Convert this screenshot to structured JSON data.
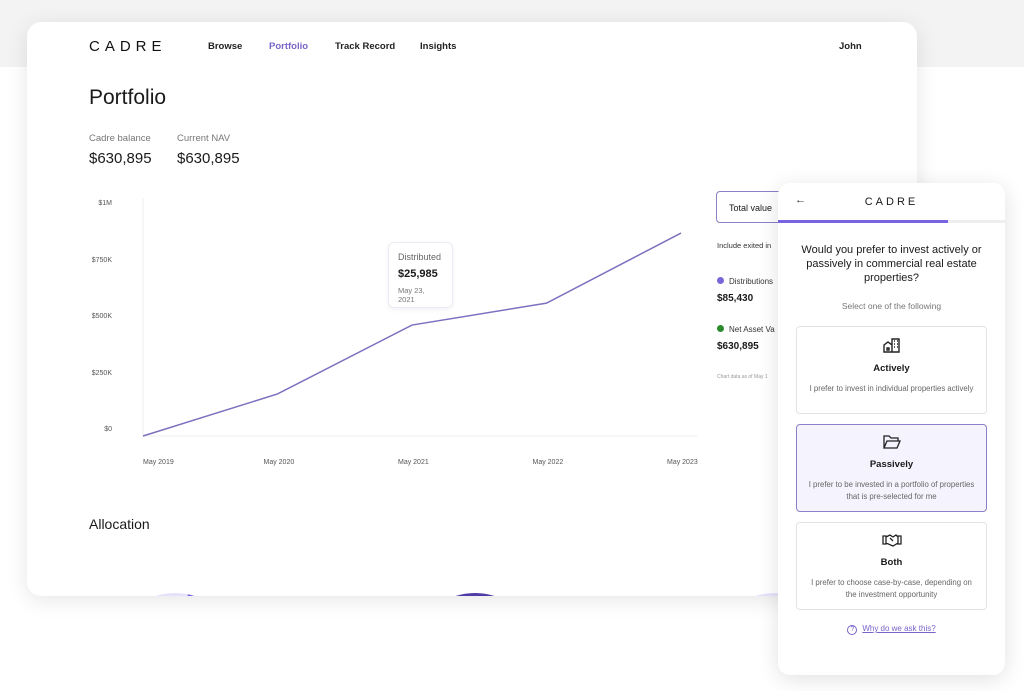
{
  "header": {
    "logo": "CADRE",
    "nav": [
      {
        "label": "Browse"
      },
      {
        "label": "Portfolio",
        "active": true
      },
      {
        "label": "Track Record"
      },
      {
        "label": "Insights"
      }
    ],
    "user": "John"
  },
  "page": {
    "title": "Portfolio",
    "stats": [
      {
        "label": "Cadre balance",
        "value": "$630,895"
      },
      {
        "label": "Current NAV",
        "value": "$630,895"
      }
    ],
    "allocation_title": "Allocation"
  },
  "tooltip": {
    "label": "Distributed",
    "value": "$25,985",
    "date": "May 23, 2021"
  },
  "side_panel": {
    "select": "Total value",
    "include": "Include exited in",
    "legend": [
      {
        "label": "Distributions",
        "value": "$85,430",
        "color": "#7b64d9"
      },
      {
        "label": "Net Asset Va",
        "value": "$630,895",
        "color": "#2b8a2b"
      }
    ],
    "note": "Chart data as of May 1"
  },
  "chart_data": {
    "type": "line",
    "categories": [
      "May 2019",
      "May 2020",
      "May 2021",
      "May 2022",
      "May 2023"
    ],
    "values": [
      0,
      186000,
      491000,
      588000,
      898000
    ],
    "yticks": [
      "$0",
      "$250K",
      "$500K",
      "$750K",
      "$1M"
    ],
    "ylim": [
      0,
      1000000
    ],
    "color": "#7f6fbf",
    "grid": false
  },
  "modal": {
    "logo": "CADRE",
    "progress": 0.75,
    "question": "Would you prefer to invest actively or passively in commercial real estate properties?",
    "subtitle": "Select one of the following",
    "options": [
      {
        "title": "Actively",
        "desc": "I prefer to invest in individual properties actively",
        "icon": "buildings-icon"
      },
      {
        "title": "Passively",
        "desc": "I prefer to be invested in a portfolio of properties that is pre-selected for me",
        "icon": "folder-icon",
        "selected": true
      },
      {
        "title": "Both",
        "desc": "I prefer to choose case-by-case, depending on the investment opportunity",
        "icon": "handshake-icon"
      }
    ],
    "help": "Why do we ask this?"
  }
}
